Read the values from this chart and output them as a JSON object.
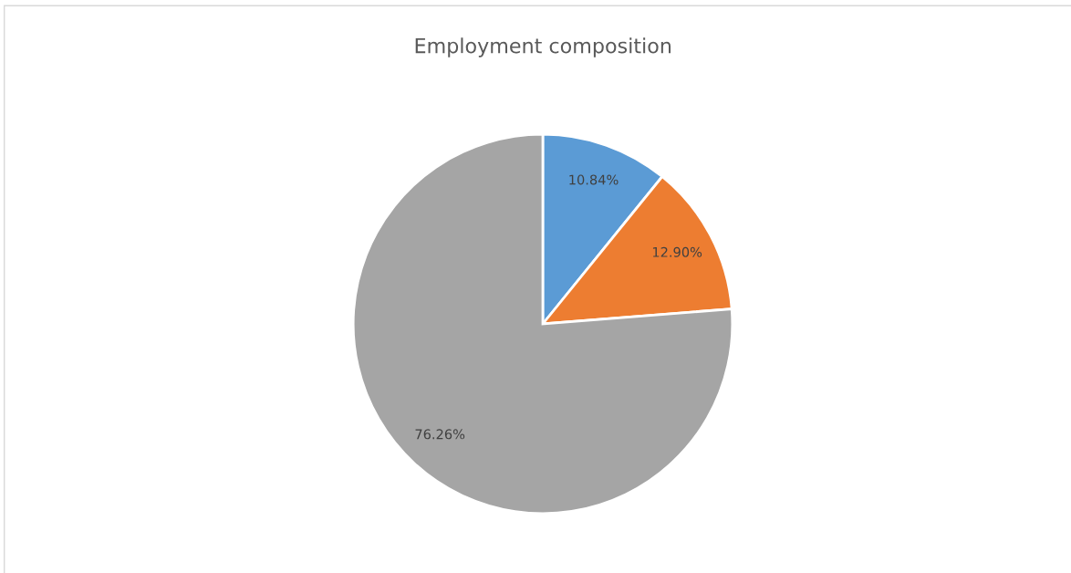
{
  "chart_data": {
    "type": "pie",
    "title": "Employment composition",
    "categories": [
      null,
      null,
      null
    ],
    "values": [
      10.84,
      12.9,
      76.26
    ],
    "colors": [
      "#5b9bd5",
      "#ed7d31",
      "#a5a5a5"
    ],
    "value_labels": [
      "10.84%",
      "12.90%",
      "76.26%"
    ],
    "legend": false
  }
}
